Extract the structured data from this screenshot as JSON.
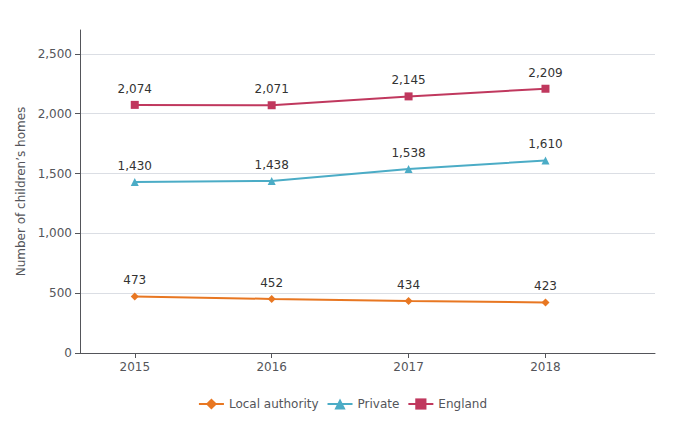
{
  "chart_data": {
    "type": "line",
    "x": [
      2015,
      2016,
      2017,
      2018
    ],
    "series": [
      {
        "name": "Local authority",
        "color": "#E87722",
        "marker": "diamond",
        "values": [
          473,
          452,
          434,
          423
        ]
      },
      {
        "name": "Private",
        "color": "#4BACC6",
        "marker": "triangle",
        "values": [
          1430,
          1438,
          1538,
          1610
        ],
        "value_labels": [
          "1,430",
          "1,438",
          "1,538",
          "1,610"
        ]
      },
      {
        "name": "England",
        "color": "#C0385E",
        "marker": "rect",
        "values": [
          2074,
          2071,
          2145,
          2209
        ],
        "value_labels": [
          "2,074",
          "2,071",
          "2,145",
          "2,209"
        ]
      }
    ],
    "ylabel": "Number of children’s homes",
    "xlim": [
      2014.6,
      2018.8
    ],
    "xticks": [
      2015,
      2016,
      2017,
      2018
    ],
    "ylim": [
      0,
      2700
    ],
    "yticks": [
      0,
      500,
      {
        "value": 1000,
        "label": "1,000"
      },
      {
        "value": 1500,
        "label": "1,500"
      },
      {
        "value": 2000,
        "label": "2,000"
      },
      {
        "value": 2500,
        "label": "2,500"
      }
    ],
    "grid": true,
    "legend": "bottom",
    "data_labels": true
  }
}
